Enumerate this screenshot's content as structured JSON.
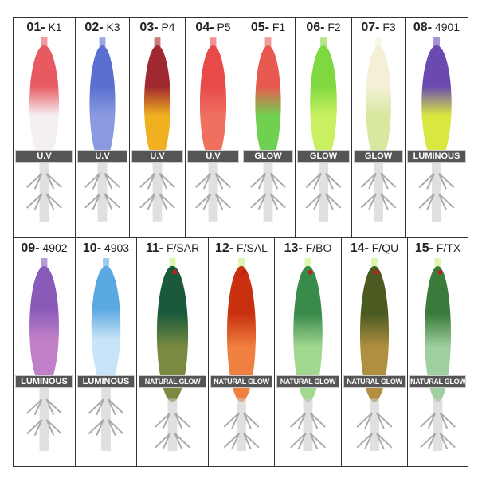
{
  "rows": [
    [
      {
        "num": "01-",
        "code": "K1",
        "badge": "U.V",
        "colors": [
          "#e85a62",
          "#f4f0f2"
        ]
      },
      {
        "num": "02-",
        "code": "K3",
        "badge": "U.V",
        "colors": [
          "#5a6fd0",
          "#8a9ae0"
        ]
      },
      {
        "num": "03-",
        "code": "P4",
        "badge": "U.V",
        "colors": [
          "#a02830",
          "#f0b020"
        ]
      },
      {
        "num": "04-",
        "code": "P5",
        "badge": "U.V",
        "colors": [
          "#e84a4a",
          "#f07060"
        ]
      },
      {
        "num": "05-",
        "code": "F1",
        "badge": "GLOW",
        "colors": [
          "#e85a50",
          "#70d050"
        ]
      },
      {
        "num": "06-",
        "code": "F2",
        "badge": "GLOW",
        "colors": [
          "#80d840",
          "#c8f060"
        ]
      },
      {
        "num": "07-",
        "code": "F3",
        "badge": "GLOW",
        "colors": [
          "#f4f0d8",
          "#d8e8a0"
        ]
      },
      {
        "num": "08-",
        "code": "4901",
        "badge": "LUMINOUS",
        "colors": [
          "#6a4ab0",
          "#d8e840"
        ]
      }
    ],
    [
      {
        "num": "09-",
        "code": "4902",
        "badge": "LUMINOUS",
        "colors": [
          "#8a5ab8",
          "#c080c8"
        ]
      },
      {
        "num": "10-",
        "code": "4903",
        "badge": "LUMINOUS",
        "colors": [
          "#5aa8e0",
          "#c8e4f8"
        ]
      },
      {
        "num": "11-",
        "code": "F/SAR",
        "badge": "NATURAL GLOW",
        "colors": [
          "#1a5a3a",
          "#7a8a40"
        ]
      },
      {
        "num": "12-",
        "code": "F/SAL",
        "badge": "NATURAL GLOW",
        "colors": [
          "#c83010",
          "#f08040"
        ]
      },
      {
        "num": "13-",
        "code": "F/BO",
        "badge": "NATURAL GLOW",
        "colors": [
          "#3a8a4a",
          "#a0d890"
        ]
      },
      {
        "num": "14-",
        "code": "F/QU",
        "badge": "NATURAL GLOW",
        "colors": [
          "#4a5a20",
          "#b09040"
        ]
      },
      {
        "num": "15-",
        "code": "F/TX",
        "badge": "NATURAL GLOW",
        "colors": [
          "#3a7a3a",
          "#a0d0a0"
        ]
      }
    ]
  ]
}
